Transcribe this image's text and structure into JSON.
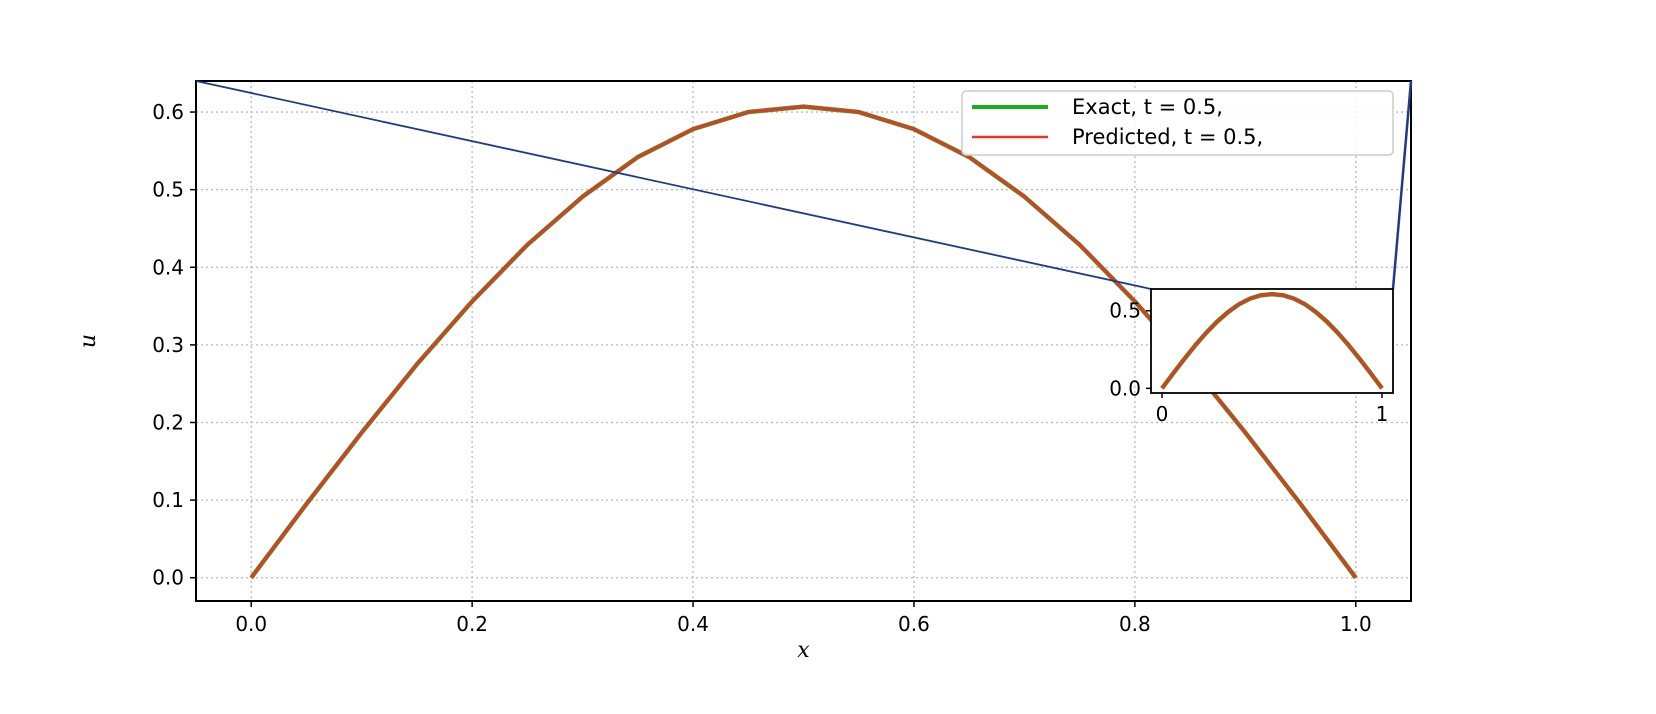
{
  "chart_data": {
    "type": "line",
    "xlabel": "x",
    "ylabel": "u",
    "xlim": [
      -0.05,
      1.05
    ],
    "ylim": [
      -0.03,
      0.64
    ],
    "xticks": [
      "0.0",
      "0.2",
      "0.4",
      "0.6",
      "0.8",
      "1.0"
    ],
    "yticks": [
      "0.0",
      "0.1",
      "0.2",
      "0.3",
      "0.4",
      "0.5",
      "0.6"
    ],
    "grid": true,
    "legend_position": "top-right",
    "x": [
      0.0,
      0.05,
      0.1,
      0.15,
      0.2,
      0.25,
      0.3,
      0.35,
      0.4,
      0.45,
      0.5,
      0.55,
      0.6,
      0.65,
      0.7,
      0.75,
      0.8,
      0.85,
      0.9,
      0.95,
      1.0
    ],
    "series": [
      {
        "name": "Exact, t = 0.5,",
        "color": "#1aaf1a",
        "values": [
          0.0,
          0.095,
          0.187,
          0.275,
          0.356,
          0.429,
          0.491,
          0.542,
          0.578,
          0.6,
          0.607,
          0.6,
          0.578,
          0.542,
          0.491,
          0.429,
          0.356,
          0.275,
          0.187,
          0.095,
          0.0
        ]
      },
      {
        "name": "Predicted, t = 0.5,",
        "color": "#e8352a",
        "values": [
          0.0,
          0.095,
          0.187,
          0.275,
          0.356,
          0.429,
          0.491,
          0.542,
          0.578,
          0.6,
          0.607,
          0.6,
          0.578,
          0.542,
          0.491,
          0.429,
          0.356,
          0.275,
          0.187,
          0.095,
          0.0
        ]
      }
    ],
    "inset": {
      "xlim": [
        -0.05,
        1.05
      ],
      "ylim": [
        -0.03,
        0.64
      ],
      "xticks": [
        "0",
        "1"
      ],
      "yticks": [
        "0.0",
        "0.5"
      ],
      "connector_color": "#1f3a8a"
    }
  }
}
